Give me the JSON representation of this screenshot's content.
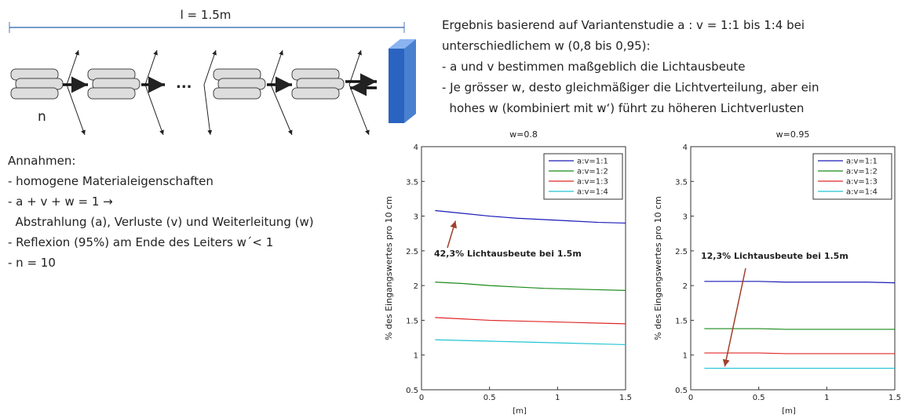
{
  "diagram": {
    "length_label": "l = 1.5m",
    "n_label": "n",
    "ellipsis": "..."
  },
  "assumptions": {
    "title": "Annahmen:",
    "lines": [
      "- homogene Materialeigenschaften",
      "- a + v + w = 1 →",
      "  Abstrahlung (a), Verluste (v) und Weiterleitung (w)",
      "- Reflexion (95%) am Ende des Leiters w´< 1",
      "- n = 10"
    ]
  },
  "result": {
    "lines": [
      "Ergebnis basierend auf Variantenstudie a : v = 1:1 bis 1:4 bei",
      "unterschiedlichem w (0,8 bis 0,95):",
      "- a und v bestimmen maßgeblich die Lichtausbeute",
      "- Je grösser w, desto gleichmäßiger die Lichtverteilung, aber ein",
      "  hohes w (kombiniert mit w‘) führt zu höheren Lichtverlusten"
    ]
  },
  "chart_data": [
    {
      "type": "line",
      "title": "w=0.8",
      "x_label": "[m]",
      "y_label": "% des Eingangswertes pro 10 cm",
      "x": [
        0.1,
        0.3,
        0.5,
        0.7,
        0.9,
        1.1,
        1.3,
        1.5
      ],
      "series": [
        {
          "name": "a:v=1:1",
          "color": "#1a1ab8",
          "values": [
            3.08,
            3.04,
            3.0,
            2.97,
            2.95,
            2.93,
            2.91,
            2.9
          ]
        },
        {
          "name": "a:v=1:2",
          "color": "#1a8a1a",
          "values": [
            2.05,
            2.03,
            2.0,
            1.98,
            1.96,
            1.95,
            1.94,
            1.93
          ]
        },
        {
          "name": "a:v=1:3",
          "color": "#e02828",
          "values": [
            1.54,
            1.52,
            1.5,
            1.49,
            1.48,
            1.47,
            1.46,
            1.45
          ]
        },
        {
          "name": "a:v=1:4",
          "color": "#22c4d4",
          "values": [
            1.22,
            1.21,
            1.2,
            1.19,
            1.18,
            1.17,
            1.16,
            1.15
          ]
        }
      ],
      "xlim": [
        0,
        1.5
      ],
      "xticks": [
        0,
        0.5,
        1,
        1.5
      ],
      "ylim": [
        0.5,
        4
      ],
      "yticks": [
        0.5,
        1,
        1.5,
        2,
        2.5,
        3,
        3.5,
        4
      ],
      "legend": "upper right",
      "annotation": "42,3% Lichtausbeute bei 1.5m"
    },
    {
      "type": "line",
      "title": "w=0.95",
      "x_label": "[m]",
      "y_label": "% des Eingangswertes pro 10 cm",
      "x": [
        0.1,
        0.3,
        0.5,
        0.7,
        0.9,
        1.1,
        1.3,
        1.5
      ],
      "series": [
        {
          "name": "a:v=1:1",
          "color": "#1a1ab8",
          "values": [
            2.06,
            2.06,
            2.06,
            2.05,
            2.05,
            2.05,
            2.05,
            2.04
          ]
        },
        {
          "name": "a:v=1:2",
          "color": "#1a8a1a",
          "values": [
            1.38,
            1.38,
            1.38,
            1.37,
            1.37,
            1.37,
            1.37,
            1.37
          ]
        },
        {
          "name": "a:v=1:3",
          "color": "#e02828",
          "values": [
            1.03,
            1.03,
            1.03,
            1.02,
            1.02,
            1.02,
            1.02,
            1.02
          ]
        },
        {
          "name": "a:v=1:4",
          "color": "#22c4d4",
          "values": [
            0.81,
            0.81,
            0.81,
            0.81,
            0.81,
            0.81,
            0.81,
            0.81
          ]
        }
      ],
      "xlim": [
        0,
        1.5
      ],
      "xticks": [
        0,
        0.5,
        1,
        1.5
      ],
      "ylim": [
        0.5,
        4
      ],
      "yticks": [
        0.5,
        1,
        1.5,
        2,
        2.5,
        3,
        3.5,
        4
      ],
      "legend": "upper right",
      "annotation": "12,3% Lichtausbeute bei 1.5m"
    }
  ]
}
